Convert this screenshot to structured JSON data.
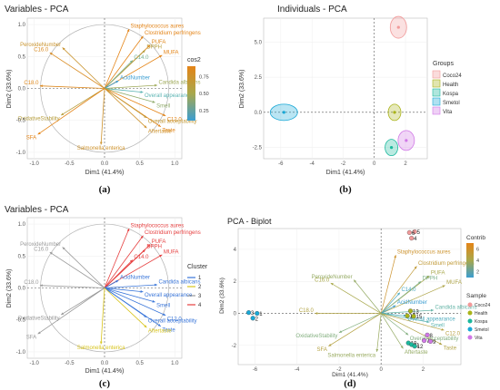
{
  "colors": {
    "cos2_scale": [
      "#e48417",
      "#a8a84c",
      "#5db5b1",
      "#3b9dd1"
    ],
    "cluster": [
      "#3a76d9",
      "#d8c41c",
      "#9a9a9a",
      "#e64040"
    ],
    "groups": [
      "#f29a9a",
      "#aab41a",
      "#1bb89d",
      "#19a8d6",
      "#d077e6"
    ]
  },
  "chart_data": [
    {
      "type": "scatter",
      "subtype": "pca-variables-cos2",
      "panel": "(a)",
      "title": "Variables - PCA",
      "xlabel": "Dim1 (41.4%)",
      "ylabel": "Dim2 (33.6%)",
      "xlim": [
        -1.1,
        1.1
      ],
      "ylim": [
        -1.1,
        1.1
      ],
      "xticks": [
        "-1.0",
        "-0.5",
        "0.0",
        "0.5",
        "1.0"
      ],
      "yticks": [
        "1.0",
        "0.5",
        "0.0",
        "-0.5",
        "-1.0"
      ],
      "legend": {
        "title": "cos2",
        "ticks": [
          "0.75",
          "0.50",
          "0.25"
        ],
        "range": [
          0.1,
          0.9
        ],
        "placement": "right"
      },
      "variables": [
        {
          "name": "Staphylococcus aures",
          "x": 0.35,
          "y": 0.93,
          "cos2": 0.98
        },
        {
          "name": "Clostridium perfringens",
          "x": 0.55,
          "y": 0.82,
          "cos2": 0.95
        },
        {
          "name": "PUFA",
          "x": 0.65,
          "y": 0.68,
          "cos2": 0.88
        },
        {
          "name": "MUFA",
          "x": 0.82,
          "y": 0.52,
          "cos2": 0.9
        },
        {
          "name": "DPPH",
          "x": 0.58,
          "y": 0.6,
          "cos2": 0.7
        },
        {
          "name": "C14.0",
          "x": 0.4,
          "y": 0.44,
          "cos2": 0.45
        },
        {
          "name": "PeroxideNumber",
          "x": -0.6,
          "y": 0.64,
          "cos2": 0.78
        },
        {
          "name": "C16.0",
          "x": -0.78,
          "y": 0.56,
          "cos2": 0.85
        },
        {
          "name": "C18.0",
          "x": -0.92,
          "y": 0.04,
          "cos2": 0.87
        },
        {
          "name": "AcidNumber",
          "x": 0.2,
          "y": 0.12,
          "cos2": 0.1
        },
        {
          "name": "Candida albicans",
          "x": 0.75,
          "y": 0.05,
          "cos2": 0.6
        },
        {
          "name": "Overall appearance",
          "x": 0.55,
          "y": -0.06,
          "cos2": 0.35
        },
        {
          "name": "Smell",
          "x": 0.72,
          "y": -0.22,
          "cos2": 0.55
        },
        {
          "name": "C12.0",
          "x": 0.87,
          "y": -0.43,
          "cos2": 0.92
        },
        {
          "name": "Taste",
          "x": 0.8,
          "y": -0.6,
          "cos2": 0.9
        },
        {
          "name": "Overall acceptability",
          "x": 0.6,
          "y": -0.46,
          "cos2": 0.75
        },
        {
          "name": "Aftertaste",
          "x": 0.6,
          "y": -0.62,
          "cos2": 0.8
        },
        {
          "name": "OxidativeStability",
          "x": -0.62,
          "y": -0.42,
          "cos2": 0.7
        },
        {
          "name": "SFA",
          "x": -0.95,
          "y": -0.72,
          "cos2": 0.9
        },
        {
          "name": "Salmonella enterica",
          "x": -0.05,
          "y": -0.88,
          "cos2": 0.8
        }
      ]
    },
    {
      "type": "scatter",
      "subtype": "pca-individuals",
      "panel": "(b)",
      "title": "Individuals - PCA",
      "xlabel": "Dim1 (41.4%)",
      "ylabel": "Dim2 (33.6%)",
      "xlim": [
        -7.1,
        3.4
      ],
      "ylim": [
        -3.3,
        6.7
      ],
      "xticks": [
        "-6",
        "-4",
        "-2",
        "0",
        "2"
      ],
      "yticks": [
        "5.0",
        "2.5",
        "0.0",
        "-2.5"
      ],
      "legend": {
        "title": "Groups",
        "placement": "right",
        "entries": [
          "Coco24",
          "Health",
          "Kospa",
          "Smetol",
          "Vita"
        ]
      },
      "groups": [
        {
          "name": "Coco24",
          "x": 1.55,
          "y": 6.05
        },
        {
          "name": "Health",
          "x": 1.3,
          "y": 0.0
        },
        {
          "name": "Kospa",
          "x": 1.1,
          "y": -2.5
        },
        {
          "name": "Smetol",
          "x": -5.8,
          "y": 0.0
        },
        {
          "name": "Vita",
          "x": 2.05,
          "y": -2.0
        }
      ]
    },
    {
      "type": "scatter",
      "subtype": "pca-variables-cluster",
      "panel": "(c)",
      "title": "Variables - PCA",
      "xlabel": "Dim1 (41.4%)",
      "ylabel": "Dim2 (33.6%)",
      "xlim": [
        -1.1,
        1.1
      ],
      "ylim": [
        -1.1,
        1.1
      ],
      "xticks": [
        "-1.0",
        "-0.5",
        "0.0",
        "0.5",
        "1.0"
      ],
      "yticks": [
        "1.0",
        "0.5",
        "0.0",
        "-0.5",
        "-1.0"
      ],
      "legend": {
        "title": "Cluster",
        "placement": "right",
        "entries": [
          "1",
          "2",
          "3",
          "4"
        ]
      },
      "variables": [
        {
          "name": "Staphylococcus aures",
          "x": 0.35,
          "y": 0.93,
          "cluster": 4
        },
        {
          "name": "Clostridium perfringens",
          "x": 0.55,
          "y": 0.82,
          "cluster": 4
        },
        {
          "name": "PUFA",
          "x": 0.65,
          "y": 0.68,
          "cluster": 4
        },
        {
          "name": "MUFA",
          "x": 0.82,
          "y": 0.52,
          "cluster": 4
        },
        {
          "name": "DPPH",
          "x": 0.58,
          "y": 0.6,
          "cluster": 4
        },
        {
          "name": "C14.0",
          "x": 0.4,
          "y": 0.44,
          "cluster": 4
        },
        {
          "name": "PeroxideNumber",
          "x": -0.6,
          "y": 0.64,
          "cluster": 3
        },
        {
          "name": "C16.0",
          "x": -0.78,
          "y": 0.56,
          "cluster": 3
        },
        {
          "name": "C18.0",
          "x": -0.92,
          "y": 0.04,
          "cluster": 3
        },
        {
          "name": "AcidNumber",
          "x": 0.2,
          "y": 0.12,
          "cluster": 1
        },
        {
          "name": "Candida albicans",
          "x": 0.75,
          "y": 0.05,
          "cluster": 1
        },
        {
          "name": "Overall appearance",
          "x": 0.55,
          "y": -0.06,
          "cluster": 1
        },
        {
          "name": "Smell",
          "x": 0.72,
          "y": -0.22,
          "cluster": 1
        },
        {
          "name": "C12.0",
          "x": 0.87,
          "y": -0.43,
          "cluster": 1
        },
        {
          "name": "Taste",
          "x": 0.8,
          "y": -0.6,
          "cluster": 1
        },
        {
          "name": "Overall acceptability",
          "x": 0.6,
          "y": -0.46,
          "cluster": 1
        },
        {
          "name": "Aftertaste",
          "x": 0.6,
          "y": -0.62,
          "cluster": 2
        },
        {
          "name": "OxidativeStability",
          "x": -0.62,
          "y": -0.42,
          "cluster": 3
        },
        {
          "name": "SFA",
          "x": -0.95,
          "y": -0.72,
          "cluster": 3
        },
        {
          "name": "Salmonella enterica",
          "x": -0.05,
          "y": -0.88,
          "cluster": 2
        }
      ]
    },
    {
      "type": "scatter",
      "subtype": "pca-biplot",
      "panel": "(d)",
      "title": "PCA - Biplot",
      "xlabel": "Dim1 (41.4%)",
      "ylabel": "Dim2 (33.6%)",
      "xlim": [
        -6.8,
        3.8
      ],
      "ylim": [
        -3.2,
        5.3
      ],
      "xticks": [
        "-6",
        "-4",
        "-2",
        "0",
        "2"
      ],
      "yticks": [
        "4",
        "2",
        "0",
        "-2"
      ],
      "legend_contrib": {
        "title": "Contrib",
        "ticks": [
          "6",
          "4",
          "2"
        ],
        "range": [
          1,
          7
        ],
        "placement": "top-right"
      },
      "legend_sample": {
        "title": "Sample",
        "placement": "right",
        "entries": [
          "Coco24",
          "Health",
          "Kospa",
          "Smetol",
          "Vita"
        ]
      },
      "points": [
        {
          "label": "1",
          "x": -5.9,
          "y": 0.0,
          "group": "Smetol"
        },
        {
          "label": "2",
          "x": -6.1,
          "y": -0.3,
          "group": "Smetol"
        },
        {
          "label": "3",
          "x": -6.3,
          "y": 0.05,
          "group": "Smetol"
        },
        {
          "label": "4",
          "x": 1.45,
          "y": 4.7,
          "group": "Coco24"
        },
        {
          "label": "5",
          "x": 1.6,
          "y": 5.1,
          "group": "Coco24"
        },
        {
          "label": "6",
          "x": 1.35,
          "y": 5.05,
          "group": "Coco24"
        },
        {
          "label": "7",
          "x": 2.05,
          "y": -1.7,
          "group": "Vita"
        },
        {
          "label": "8",
          "x": 2.2,
          "y": -1.35,
          "group": "Vita"
        },
        {
          "label": "9",
          "x": 2.35,
          "y": -1.75,
          "group": "Vita"
        },
        {
          "label": "10",
          "x": 1.3,
          "y": -1.85,
          "group": "Kospa"
        },
        {
          "label": "11",
          "x": 1.45,
          "y": -1.95,
          "group": "Kospa"
        },
        {
          "label": "12",
          "x": 1.6,
          "y": -2.05,
          "group": "Kospa"
        },
        {
          "label": "13",
          "x": 1.4,
          "y": 0.15,
          "group": "Health"
        },
        {
          "label": "14",
          "x": 1.25,
          "y": -0.15,
          "group": "Health"
        },
        {
          "label": "15",
          "x": 1.55,
          "y": -0.18,
          "group": "Health"
        }
      ],
      "variables": [
        {
          "name": "Staphylococcus aures",
          "x": 0.7,
          "y": 3.65,
          "contrib": 6.2
        },
        {
          "name": "Clostridium perfringens",
          "x": 1.7,
          "y": 2.95,
          "contrib": 5.8
        },
        {
          "name": "PUFA",
          "x": 2.3,
          "y": 2.35,
          "contrib": 5.0
        },
        {
          "name": "MUFA",
          "x": 3.05,
          "y": 1.75,
          "contrib": 5.2
        },
        {
          "name": "DPPH",
          "x": 1.9,
          "y": 2.0,
          "contrib": 3.8
        },
        {
          "name": "C14.0",
          "x": 0.9,
          "y": 1.3,
          "contrib": 2.0
        },
        {
          "name": "PeroxideNumber",
          "x": -1.3,
          "y": 2.1,
          "contrib": 4.5
        },
        {
          "name": "C16.0",
          "x": -2.4,
          "y": 1.9,
          "contrib": 5.0
        },
        {
          "name": "C18.0",
          "x": -3.15,
          "y": 0.0,
          "contrib": 5.3
        },
        {
          "name": "AcidNumber",
          "x": 0.7,
          "y": 0.5,
          "contrib": 1.0
        },
        {
          "name": "Candida albicans",
          "x": 2.5,
          "y": 0.2,
          "contrib": 3.2
        },
        {
          "name": "Overall appearance",
          "x": 1.2,
          "y": -0.15,
          "contrib": 2.2
        },
        {
          "name": "Smell",
          "x": 2.3,
          "y": -0.55,
          "contrib": 3.0
        },
        {
          "name": "C12.0",
          "x": 3.0,
          "y": -1.05,
          "contrib": 5.5
        },
        {
          "name": "Taste",
          "x": 2.9,
          "y": -1.95,
          "contrib": 5.3
        },
        {
          "name": "Overall acceptability",
          "x": 1.3,
          "y": -1.35,
          "contrib": 4.0
        },
        {
          "name": "Aftertaste",
          "x": 1.05,
          "y": -2.2,
          "contrib": 4.5
        },
        {
          "name": "OxidativeStability",
          "x": -2.0,
          "y": -1.2,
          "contrib": 4.0
        },
        {
          "name": "SFA",
          "x": -2.5,
          "y": -2.05,
          "contrib": 5.4
        },
        {
          "name": "Salmonella enterica",
          "x": -0.2,
          "y": -2.4,
          "contrib": 4.6
        }
      ]
    }
  ]
}
